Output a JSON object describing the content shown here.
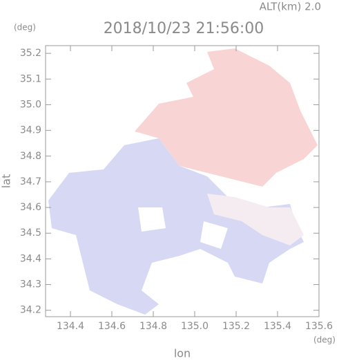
{
  "chart_data": {
    "type": "map",
    "title": "2018/10/23 21:56:00",
    "subtitle": "ALT(km) 2.0",
    "y_unit": "(deg)",
    "x_unit": "(deg)",
    "xlabel": "lon",
    "ylabel": "lat",
    "xlim": [
      134.28,
      135.6
    ],
    "ylim": [
      34.175,
      35.23
    ],
    "xticks": [
      134.4,
      134.6,
      134.8,
      135.0,
      135.2,
      135.4,
      135.6
    ],
    "yticks": [
      34.2,
      34.3,
      34.4,
      34.5,
      34.6,
      34.7,
      34.8,
      34.9,
      35.0,
      35.1,
      35.2
    ]
  }
}
